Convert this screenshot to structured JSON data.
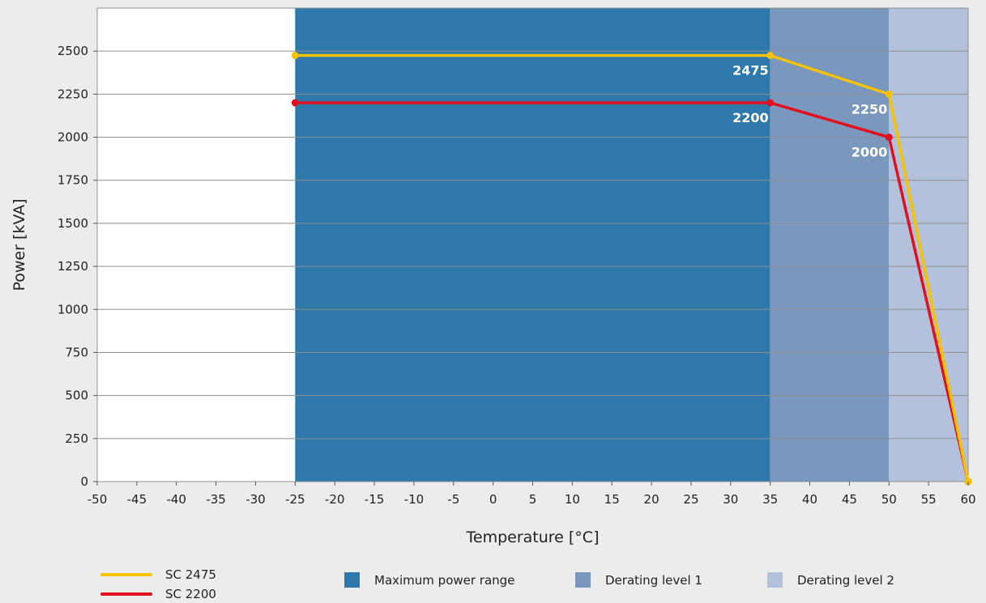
{
  "chart_data": {
    "type": "line",
    "xlabel": "Temperature [°C]",
    "ylabel": "Power [kVA]",
    "xlim": [
      -50,
      60
    ],
    "ylim": [
      0,
      2750
    ],
    "x_ticks": [
      -50,
      -45,
      -40,
      -35,
      -30,
      -25,
      -20,
      -15,
      -10,
      -5,
      0,
      5,
      10,
      15,
      20,
      25,
      30,
      35,
      40,
      45,
      50,
      55,
      60
    ],
    "y_ticks": [
      0,
      250,
      500,
      750,
      1000,
      1250,
      1500,
      1750,
      2000,
      2250,
      2500
    ],
    "grid": "horizontal",
    "legend_placement": "bottom",
    "bands": [
      {
        "name": "Maximum power range",
        "from": -25,
        "to": 35,
        "color": "#2e78ab"
      },
      {
        "name": "Derating level 1",
        "from": 35,
        "to": 50,
        "color": "#7a98bd"
      },
      {
        "name": "Derating level 2",
        "from": 50,
        "to": 60,
        "color": "#b4c1dc"
      }
    ],
    "series": [
      {
        "name": "SC 2475",
        "color": "#f7c300",
        "x": [
          -25,
          35,
          50,
          60
        ],
        "y": [
          2475,
          2475,
          2250,
          0
        ]
      },
      {
        "name": "SC 2200",
        "color": "#e2101e",
        "x": [
          -25,
          35,
          50,
          60
        ],
        "y": [
          2200,
          2200,
          2000,
          0
        ]
      }
    ],
    "annotations": [
      {
        "text": "2475",
        "x": 35,
        "y": 2475
      },
      {
        "text": "2250",
        "x": 50,
        "y": 2250
      },
      {
        "text": "2200",
        "x": 35,
        "y": 2200
      },
      {
        "text": "2000",
        "x": 50,
        "y": 2000
      }
    ]
  }
}
